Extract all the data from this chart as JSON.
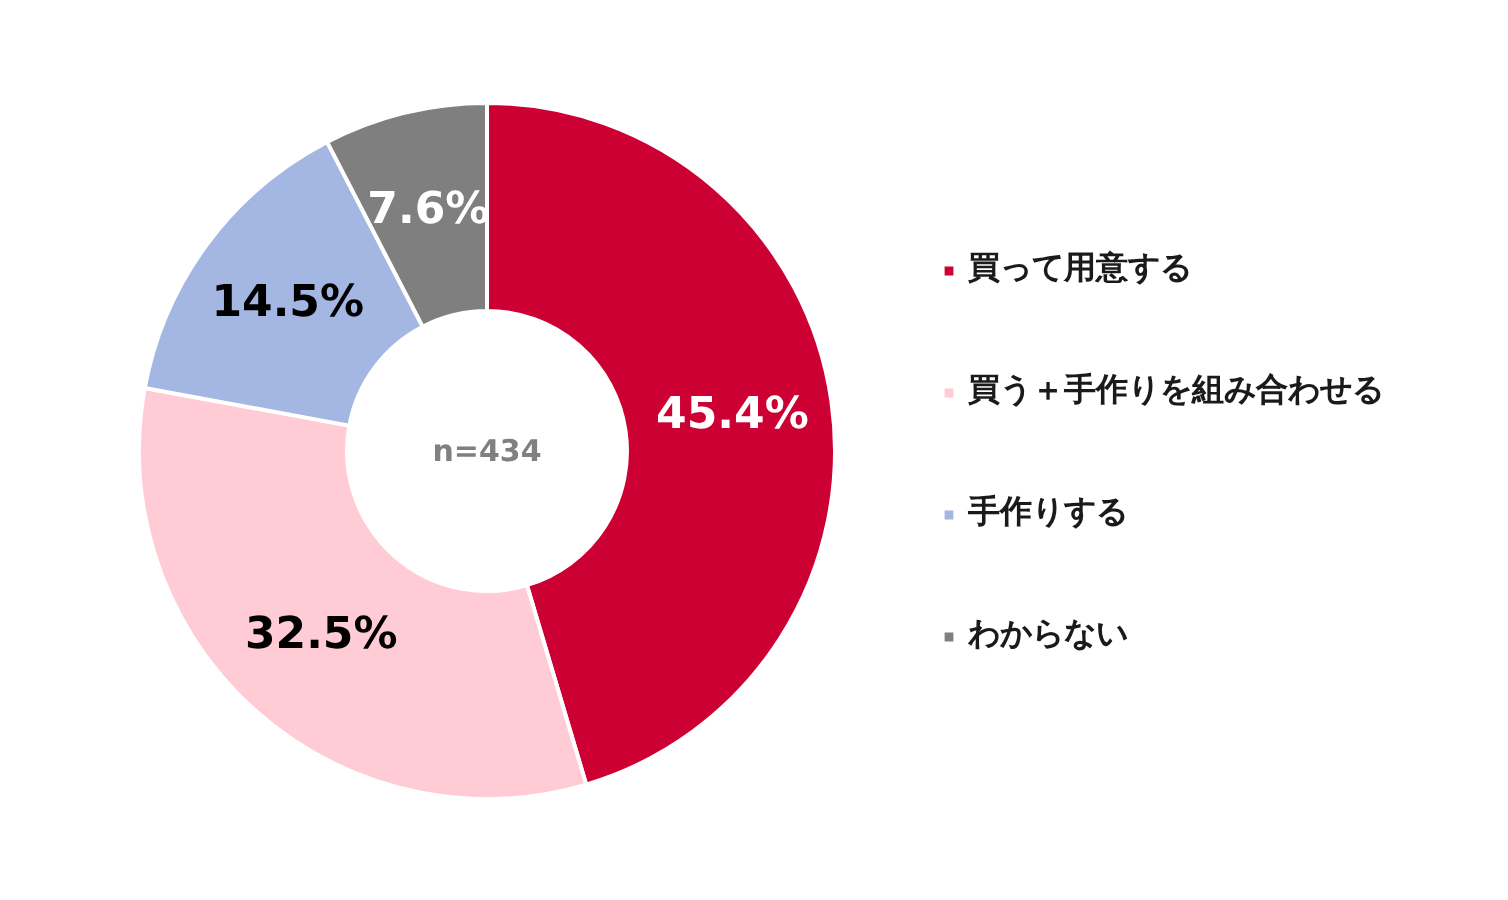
{
  "chart_data": {
    "type": "donut",
    "categories": [
      "買って用意する",
      "買う＋手作りを組み合わせる",
      "手作りする",
      "わからない"
    ],
    "values": [
      45.4,
      32.5,
      14.5,
      7.6
    ],
    "colors": [
      "#cc0033",
      "#ffccd5",
      "#a3b7e2",
      "#7f7f7f"
    ],
    "value_labels": [
      "45.4%",
      "32.5%",
      "14.5%",
      "7.6%"
    ],
    "annotations": [
      "n=434"
    ],
    "legend": "right"
  }
}
